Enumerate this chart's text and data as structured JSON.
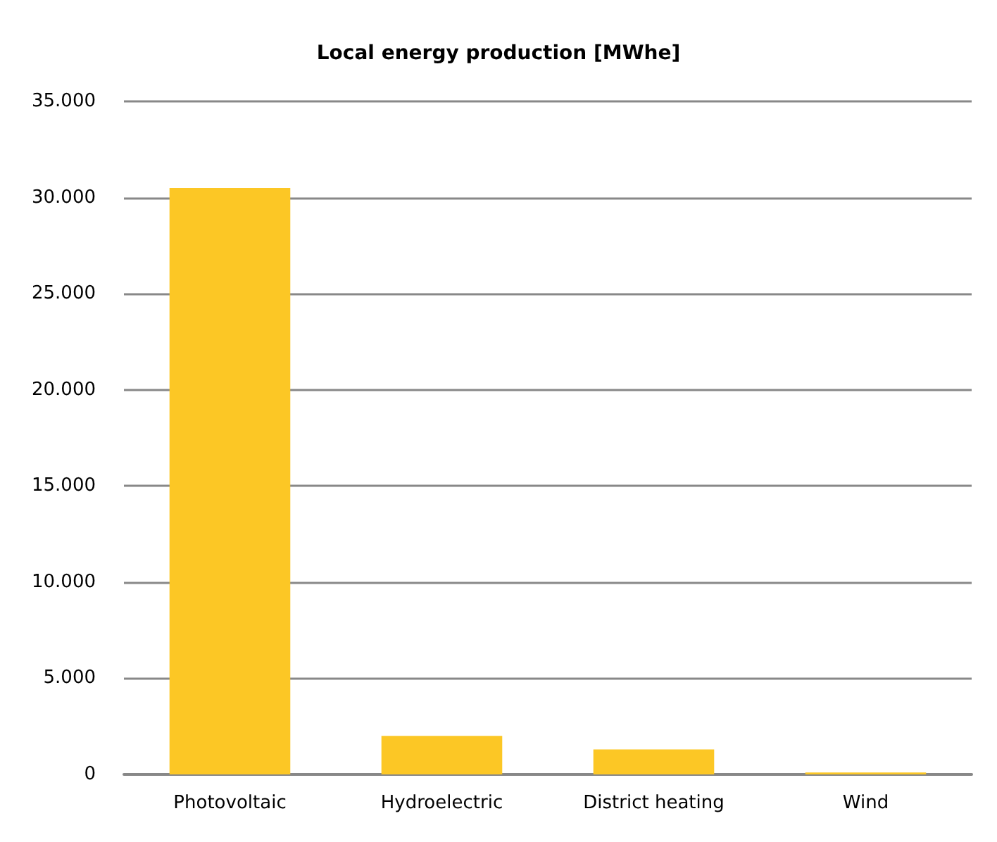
{
  "chart_data": {
    "type": "bar",
    "title": "Local energy production [MWhe]",
    "categories": [
      "Photovoltaic",
      "Hydroelectric",
      "District heating",
      "Wind"
    ],
    "values": [
      30500,
      2000,
      1300,
      100
    ],
    "color": "#fcc725",
    "ylim": [
      0,
      35000
    ],
    "yticks": [
      {
        "value": 0,
        "label": "0"
      },
      {
        "value": 5000,
        "label": "5.000"
      },
      {
        "value": 10000,
        "label": "10.000"
      },
      {
        "value": 15000,
        "label": "15.000"
      },
      {
        "value": 20000,
        "label": "20.000"
      },
      {
        "value": 25000,
        "label": "25.000"
      },
      {
        "value": 30000,
        "label": "30.000"
      },
      {
        "value": 35000,
        "label": "35.000"
      }
    ],
    "grid": "y"
  }
}
